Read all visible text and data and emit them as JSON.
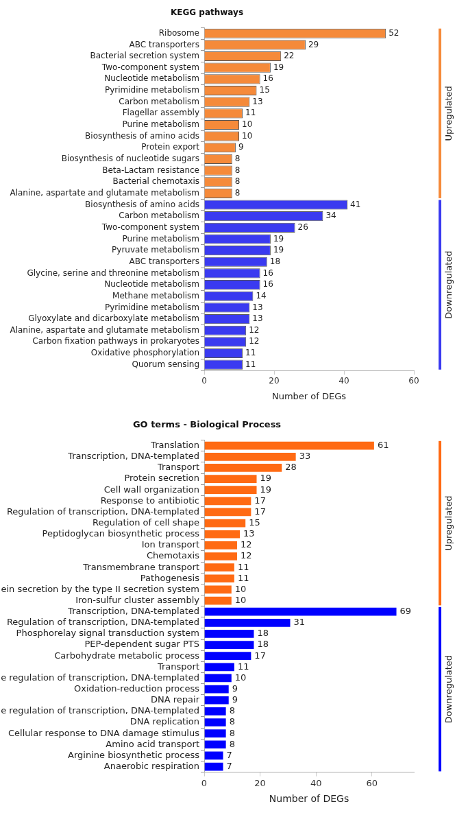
{
  "chart_data": [
    {
      "type": "bar",
      "orientation": "horizontal",
      "title": "KEGG pathways",
      "xlabel": "Number of DEGs",
      "categories": [
        "Ribosome",
        "ABC transporters",
        "Bacterial secretion system",
        "Two-component system",
        "Nucleotide metabolism",
        "Pyrimidine metabolism",
        "Carbon metabolism",
        "Flagellar assembly",
        "Purine metabolism",
        "Biosynthesis of amino acids",
        "Protein export",
        "Biosynthesis of nucleotide sugars",
        "Beta-Lactam resistance",
        "Bacterial chemotaxis",
        "Alanine, aspartate and glutamate metabolism",
        "Biosynthesis of amino acids",
        "Carbon metabolism",
        "Two-component system",
        "Purine metabolism",
        "Pyruvate metabolism",
        "ABC transporters",
        "Glycine, serine and threonine metabolism",
        "Nucleotide metabolism",
        "Methane metabolism",
        "Pyrimidine metabolism",
        "Glyoxylate and dicarboxylate metabolism",
        "Alanine, aspartate and glutamate metabolism",
        "Carbon fixation pathways in prokaryotes",
        "Oxidative phosphorylation",
        "Quorum sensing"
      ],
      "series": [
        {
          "name": "Upregulated",
          "color": "#f58a3a",
          "values": [
            52,
            29,
            22,
            19,
            16,
            15,
            13,
            11,
            10,
            10,
            9,
            8,
            8,
            8,
            8,
            null,
            null,
            null,
            null,
            null,
            null,
            null,
            null,
            null,
            null,
            null,
            null,
            null,
            null,
            null
          ]
        },
        {
          "name": "Downregulated",
          "color": "#3a3af0",
          "values": [
            null,
            null,
            null,
            null,
            null,
            null,
            null,
            null,
            null,
            null,
            null,
            null,
            null,
            null,
            null,
            41,
            34,
            26,
            19,
            19,
            18,
            16,
            16,
            14,
            13,
            13,
            12,
            12,
            11,
            11
          ]
        }
      ],
      "xlim": [
        0,
        60
      ],
      "xticks": [
        0,
        20,
        40,
        60
      ],
      "data_labels": true,
      "grid": false,
      "legend": false
    },
    {
      "type": "bar",
      "orientation": "horizontal",
      "title": "GO terms - Biological Process",
      "xlabel": "Number of DEGs",
      "categories": [
        "Translation",
        "Transcription, DNA-templated",
        "Transport",
        "Protein secretion",
        "Cell wall organization",
        "Response to antibiotic",
        "Regulation of transcription, DNA-templated",
        "Regulation of cell shape",
        "Peptidoglycan biosynthetic process",
        "Ion transport",
        "Chemotaxis",
        "Transmembrane transport",
        "Pathogenesis",
        "ein secretion by the type II secretion system",
        "Iron-sulfur cluster assembly",
        "Transcription, DNA-templated",
        "Regulation of transcription, DNA-templated",
        "Phosphorelay signal transduction system",
        "PEP-dependent sugar PTS",
        "Carbohydrate metabolic process",
        "Transport",
        "e regulation of transcription, DNA-templated",
        "Oxidation-reduction process",
        "DNA repair",
        "e regulation of transcription, DNA-templated",
        "DNA replication",
        "Cellular response to DNA damage stimulus",
        "Amino acid transport",
        "Arginine biosynthetic process",
        "Anaerobic respiration"
      ],
      "series": [
        {
          "name": "Upregulated",
          "color": "#ff6a13",
          "values": [
            61,
            33,
            28,
            19,
            19,
            17,
            17,
            15,
            13,
            12,
            12,
            11,
            11,
            10,
            10,
            null,
            null,
            null,
            null,
            null,
            null,
            null,
            null,
            null,
            null,
            null,
            null,
            null,
            null,
            null
          ]
        },
        {
          "name": "Downregulated",
          "color": "#0000ff",
          "values": [
            null,
            null,
            null,
            null,
            null,
            null,
            null,
            null,
            null,
            null,
            null,
            null,
            null,
            null,
            null,
            69,
            31,
            18,
            18,
            17,
            11,
            10,
            9,
            9,
            8,
            8,
            8,
            8,
            7,
            7
          ]
        }
      ],
      "xlim": [
        0,
        75
      ],
      "xticks": [
        0,
        20,
        40,
        60
      ],
      "data_labels": true,
      "grid": false,
      "legend": false
    }
  ]
}
